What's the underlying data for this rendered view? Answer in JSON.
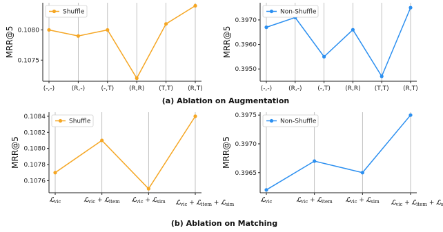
{
  "captions": {
    "top": "(a) Ablation on Augmentation",
    "bottom": "(b) Ablation on Matching"
  },
  "colors": {
    "shuffle": "#f5a623",
    "nonshuffle": "#2b8ff0",
    "grid": "#b0b0b0"
  },
  "chart_data": [
    {
      "id": "aug-shuffle",
      "type": "line",
      "categories": [
        "(-,-)",
        "(R,-)",
        "(-,T)",
        "(R,R)",
        "(T,T)",
        "(R,T)"
      ],
      "series": [
        {
          "name": "Shuffle",
          "values": [
            0.108,
            0.1079,
            0.108,
            0.1072,
            0.1081,
            0.1084
          ]
        }
      ],
      "ylabel": "MRR@5",
      "ylim": [
        0.10715,
        0.10845
      ],
      "yticks": [
        0.1075,
        0.108
      ],
      "ytick_labels": [
        "0.1075",
        "0.1080"
      ],
      "grid": "vertical",
      "legend": "top-left"
    },
    {
      "id": "aug-nonshuffle",
      "type": "line",
      "categories": [
        "(-,-)",
        "(R,-)",
        "(-,T)",
        "(R,R)",
        "(T,T)",
        "(R,T)"
      ],
      "series": [
        {
          "name": "Non-Shuffle",
          "values": [
            0.3967,
            0.3971,
            0.3955,
            0.3966,
            0.3947,
            0.3975
          ]
        }
      ],
      "ylabel": "MRR@5",
      "ylim": [
        0.3945,
        0.3977
      ],
      "yticks": [
        0.395,
        0.396,
        0.397
      ],
      "ytick_labels": [
        "0.3950",
        "0.3960",
        "0.3970"
      ],
      "grid": "vertical",
      "legend": "top-left"
    },
    {
      "id": "match-shuffle",
      "type": "line",
      "categories": [
        "L_vic",
        "L_vic + L_item",
        "L_vic + L_sim",
        "L_vic + L_item + L_sim"
      ],
      "series": [
        {
          "name": "Shuffle",
          "values": [
            0.1077,
            0.1081,
            0.1075,
            0.1084
          ]
        }
      ],
      "ylabel": "MRR@5",
      "ylim": [
        0.10745,
        0.10845
      ],
      "yticks": [
        0.1076,
        0.1078,
        0.108,
        0.1082,
        0.1084
      ],
      "ytick_labels": [
        "0.1076",
        "0.1078",
        "0.1080",
        "0.1082",
        "0.1084"
      ],
      "grid": "vertical",
      "legend": "top-left"
    },
    {
      "id": "match-nonshuffle",
      "type": "line",
      "categories": [
        "L_vic",
        "L_vic + L_item",
        "L_vic + L_sim",
        "L_vic + L_item + L_sim"
      ],
      "series": [
        {
          "name": "Non-Shuffle",
          "values": [
            0.3962,
            0.3967,
            0.3965,
            0.3975
          ]
        }
      ],
      "ylabel": "MRR@5",
      "ylim": [
        0.39615,
        0.39755
      ],
      "yticks": [
        0.3965,
        0.397,
        0.3975
      ],
      "ytick_labels": [
        "0.3965",
        "0.3970",
        "0.3975"
      ],
      "grid": "vertical",
      "legend": "top-left"
    }
  ]
}
